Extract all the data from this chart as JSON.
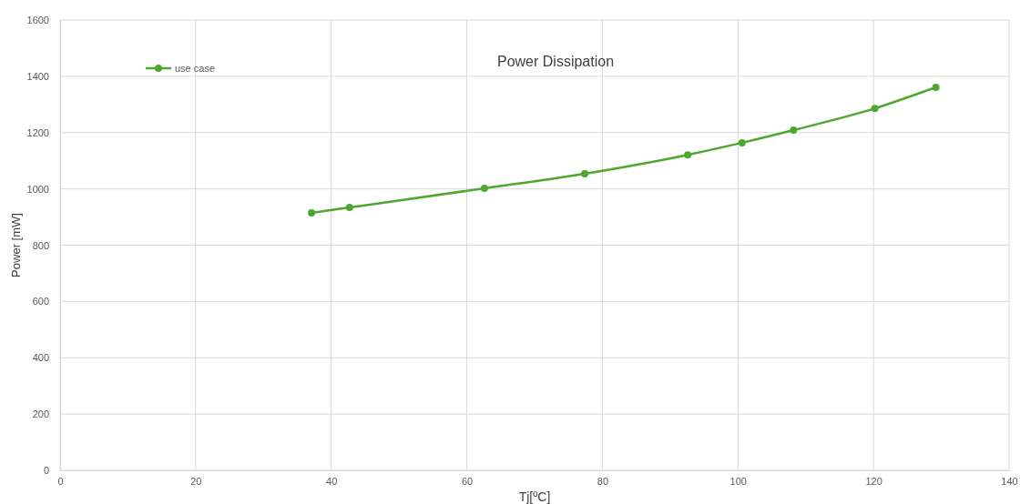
{
  "chart_data": {
    "type": "line",
    "title": "Power Dissipation",
    "xlabel": "Tj[ºC]",
    "ylabel": "Power [mW]",
    "x": [
      37.1,
      42.7,
      62.6,
      77.4,
      92.6,
      100.6,
      108.2,
      120.2,
      129.2
    ],
    "series": [
      {
        "name": "use case",
        "color": "#4ea72e",
        "values": [
          915,
          934,
          1002,
          1054,
          1121,
          1164,
          1209,
          1286,
          1361
        ]
      }
    ],
    "xlim": [
      0,
      140
    ],
    "xticks": [
      0,
      20,
      40,
      60,
      80,
      100,
      120,
      140
    ],
    "ylim": [
      0,
      1600
    ],
    "yticks": [
      0,
      200,
      400,
      600,
      800,
      1000,
      1200,
      1400,
      1600
    ],
    "grid": true,
    "legend": "top left",
    "marker": "circle",
    "line_style": "solid"
  }
}
